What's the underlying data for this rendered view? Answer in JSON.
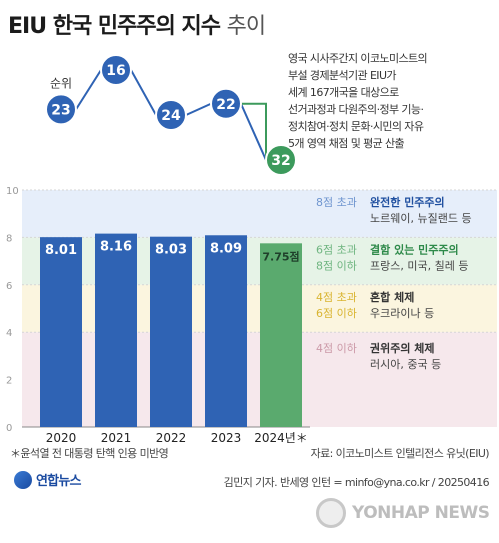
{
  "title": {
    "main": "EIU 한국 민주주의 지수",
    "sub": "추이"
  },
  "description": [
    "영국 시사주간지 이코노미스트의",
    "부설 경제분석기관 EIU가",
    "세계 167개국을 대상으로",
    "선거과정과 다원주의·정부 기능·",
    "정치참여·정치 문화·시민의 자유",
    "5개 영역 채점 및 평균 산출"
  ],
  "rank_label": "순위",
  "footnote": "＊윤석열 전 대통령 탄핵 인용 미반영",
  "source": "자료: 이코노미스트 인텔리전스 유닛(EIU)",
  "credit": "김민지 기자. 반세영 인턴 = minfo@yna.co.kr / 20250416",
  "logo_yna": "연합뉴스",
  "logo_yonhap": "YONHAP NEWS",
  "colors": {
    "bar": "#2f63b4",
    "bar_last": "#5aaa6e",
    "rank_blue": "#2f63b4",
    "rank_green": "#3c9a5c",
    "band_full": "#e6eefa",
    "band_flawed": "#e6f3e7",
    "band_hybrid": "#fbf5df",
    "band_auth": "#f6e8ec"
  },
  "bands": [
    {
      "range": "8점 초과",
      "range2": "",
      "name": "완전한 민주주의",
      "examples": "노르웨이, 뉴질랜드 등",
      "range_color": "#6f95cf",
      "name_color": "#1f4f9f"
    },
    {
      "range": "6점 초과",
      "range2": "8점 이하",
      "name": "결함 있는 민주주의",
      "examples": "프랑스, 미국, 칠레 등",
      "range_color": "#6fb580",
      "name_color": "#2e8a4a"
    },
    {
      "range": "4점 초과",
      "range2": "6점 이하",
      "name": "혼합 체제",
      "examples": "우크라이나 등",
      "range_color": "#d9b430",
      "name_color": "#333333"
    },
    {
      "range": "4점 이하",
      "range2": "",
      "name": "권위주의 체제",
      "examples": "러시아, 중국 등",
      "range_color": "#cc9aa8",
      "name_color": "#333333"
    }
  ],
  "chart_data": {
    "type": "bar",
    "categories": [
      "2020",
      "2021",
      "2022",
      "2023",
      "2024년＊"
    ],
    "values": [
      8.01,
      8.16,
      8.03,
      8.09,
      7.75
    ],
    "value_labels": [
      "8.01",
      "8.16",
      "8.03",
      "8.09",
      "7.75점"
    ],
    "ranks": [
      23,
      16,
      24,
      22,
      32
    ],
    "y_ticks": [
      "0",
      "2",
      "4",
      "6",
      "8",
      "10"
    ],
    "ylim": [
      0,
      10
    ]
  }
}
